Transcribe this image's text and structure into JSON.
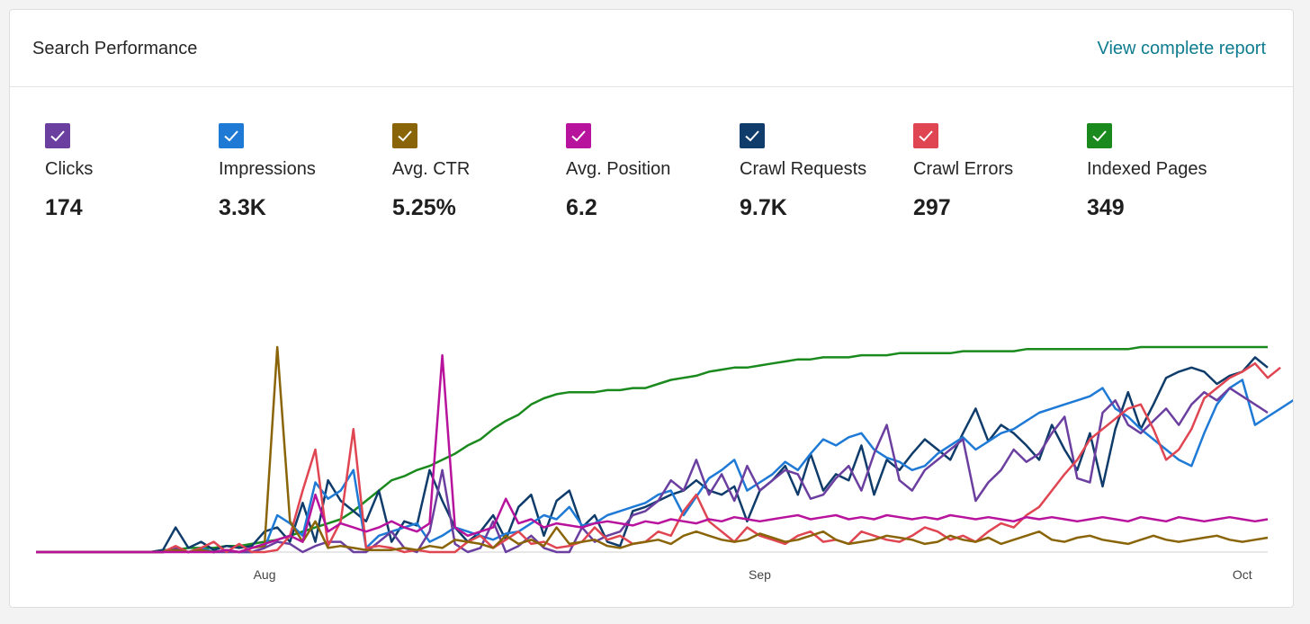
{
  "header": {
    "title": "Search Performance",
    "link_label": "View complete report"
  },
  "metrics": [
    {
      "label": "Clicks",
      "value": "174",
      "color": "#6b3fa0",
      "checked": true
    },
    {
      "label": "Impressions",
      "value": "3.3K",
      "color": "#1f7ad6",
      "checked": true
    },
    {
      "label": "Avg. CTR",
      "value": "5.25%",
      "color": "#8a6408",
      "checked": true
    },
    {
      "label": "Avg. Position",
      "value": "6.2",
      "color": "#b8139c",
      "checked": true
    },
    {
      "label": "Crawl Requests",
      "value": "9.7K",
      "color": "#0f3c6b",
      "checked": true
    },
    {
      "label": "Crawl Errors",
      "value": "297",
      "color": "#e04552",
      "checked": true
    },
    {
      "label": "Indexed Pages",
      "value": "349",
      "color": "#1b8a1e",
      "checked": true
    }
  ],
  "chart_data": {
    "type": "line",
    "x_tick_labels": [
      "Aug",
      "Sep",
      "Oct"
    ],
    "x_tick_index": [
      18,
      57,
      95
    ],
    "y_range": [
      0,
      100
    ],
    "grid": false,
    "legend": "top",
    "series": [
      {
        "name": "Indexed Pages",
        "color": "#1b8a1e",
        "values": [
          0,
          0,
          0,
          0,
          0,
          0,
          0,
          0,
          0,
          0,
          1,
          1,
          2,
          2,
          2,
          3,
          3,
          4,
          5,
          6,
          8,
          10,
          12,
          14,
          16,
          20,
          25,
          30,
          35,
          37,
          40,
          42,
          45,
          48,
          52,
          55,
          60,
          64,
          67,
          72,
          75,
          77,
          78,
          78,
          78,
          79,
          79,
          80,
          80,
          82,
          84,
          85,
          86,
          88,
          89,
          90,
          90,
          91,
          92,
          93,
          94,
          94,
          95,
          95,
          95,
          96,
          96,
          96,
          97,
          97,
          97,
          97,
          97,
          98,
          98,
          98,
          98,
          98,
          99,
          99,
          99,
          99,
          99,
          99,
          99,
          99,
          99,
          100,
          100,
          100,
          100,
          100,
          100,
          100,
          100,
          100,
          100,
          100
        ]
      },
      {
        "name": "Crawl Requests",
        "color": "#0f3c6b",
        "values": [
          0,
          0,
          0,
          0,
          0,
          0,
          0,
          0,
          0,
          0,
          1,
          12,
          2,
          5,
          1,
          3,
          2,
          3,
          10,
          12,
          5,
          24,
          5,
          35,
          25,
          20,
          15,
          30,
          5,
          15,
          13,
          40,
          25,
          12,
          5,
          10,
          18,
          6,
          22,
          28,
          8,
          25,
          30,
          12,
          18,
          5,
          3,
          20,
          22,
          25,
          28,
          30,
          35,
          30,
          28,
          32,
          15,
          30,
          35,
          42,
          28,
          48,
          30,
          38,
          35,
          52,
          28,
          45,
          40,
          48,
          55,
          50,
          45,
          58,
          70,
          54,
          62,
          58,
          52,
          45,
          62,
          50,
          40,
          58,
          32,
          60,
          78,
          60,
          72,
          85,
          88,
          90,
          88,
          82,
          86,
          88,
          95,
          90
        ]
      },
      {
        "name": "Impressions",
        "color": "#1f7ad6",
        "values": [
          0,
          0,
          0,
          0,
          0,
          0,
          0,
          0,
          0,
          0,
          0,
          1,
          0,
          2,
          0,
          1,
          0,
          0,
          2,
          18,
          14,
          8,
          34,
          26,
          30,
          40,
          2,
          8,
          10,
          12,
          14,
          5,
          8,
          12,
          10,
          8,
          6,
          9,
          10,
          14,
          18,
          16,
          22,
          13,
          14,
          18,
          20,
          22,
          24,
          28,
          30,
          18,
          27,
          36,
          40,
          45,
          30,
          34,
          38,
          44,
          40,
          48,
          55,
          52,
          56,
          58,
          50,
          46,
          44,
          40,
          42,
          48,
          52,
          56,
          50,
          54,
          58,
          60,
          64,
          68,
          70,
          72,
          74,
          76,
          80,
          70,
          66,
          60,
          55,
          50,
          45,
          42,
          58,
          72,
          80,
          84,
          62,
          66,
          70,
          74,
          66
        ]
      },
      {
        "name": "Clicks",
        "color": "#6b3fa0",
        "values": [
          0,
          0,
          0,
          0,
          0,
          0,
          0,
          0,
          0,
          0,
          0,
          2,
          0,
          1,
          0,
          0,
          0,
          0,
          2,
          5,
          4,
          0,
          3,
          5,
          5,
          0,
          0,
          5,
          10,
          2,
          0,
          10,
          40,
          4,
          0,
          2,
          15,
          0,
          3,
          8,
          2,
          0,
          0,
          12,
          5,
          8,
          10,
          18,
          20,
          25,
          35,
          30,
          45,
          28,
          38,
          25,
          42,
          30,
          35,
          40,
          38,
          26,
          28,
          36,
          42,
          30,
          48,
          62,
          35,
          30,
          40,
          45,
          50,
          55,
          25,
          34,
          40,
          50,
          44,
          48,
          58,
          66,
          36,
          34,
          68,
          74,
          62,
          58,
          64,
          70,
          62,
          72,
          78,
          74,
          80,
          76,
          72,
          68
        ]
      },
      {
        "name": "Crawl Errors",
        "color": "#e04552",
        "values": [
          0,
          0,
          0,
          0,
          0,
          0,
          0,
          0,
          0,
          0,
          0,
          3,
          0,
          2,
          5,
          0,
          4,
          0,
          0,
          1,
          8,
          30,
          50,
          3,
          15,
          60,
          2,
          3,
          2,
          0,
          1,
          0,
          0,
          0,
          5,
          8,
          2,
          6,
          10,
          4,
          5,
          2,
          3,
          5,
          12,
          6,
          8,
          4,
          5,
          10,
          8,
          20,
          28,
          15,
          10,
          5,
          12,
          8,
          6,
          4,
          8,
          10,
          5,
          6,
          4,
          10,
          8,
          6,
          5,
          8,
          12,
          10,
          6,
          8,
          5,
          10,
          14,
          12,
          18,
          22,
          30,
          38,
          45,
          55,
          60,
          65,
          70,
          72,
          60,
          45,
          50,
          60,
          75,
          80,
          85,
          88,
          92,
          85,
          90
        ]
      },
      {
        "name": "Avg. CTR",
        "color": "#8a6408",
        "values": [
          0,
          0,
          0,
          0,
          0,
          0,
          0,
          0,
          0,
          0,
          0,
          1,
          0,
          1,
          0,
          1,
          0,
          2,
          3,
          100,
          15,
          5,
          15,
          2,
          3,
          2,
          1,
          1,
          1,
          2,
          1,
          3,
          2,
          6,
          5,
          4,
          2,
          8,
          4,
          6,
          3,
          12,
          4,
          5,
          6,
          3,
          2,
          4,
          5,
          6,
          4,
          8,
          10,
          8,
          6,
          5,
          6,
          9,
          7,
          5,
          6,
          8,
          10,
          6,
          4,
          5,
          6,
          8,
          7,
          6,
          4,
          5,
          8,
          6,
          5,
          7,
          4,
          6,
          8,
          10,
          6,
          5,
          7,
          8,
          6,
          5,
          4,
          6,
          8,
          6,
          5,
          6,
          7,
          8,
          6,
          5,
          6,
          7
        ]
      },
      {
        "name": "Avg. Position",
        "color": "#b8139c",
        "values": [
          0,
          0,
          0,
          0,
          0,
          0,
          0,
          0,
          0,
          0,
          0,
          0,
          0,
          0,
          0,
          1,
          0,
          2,
          4,
          6,
          8,
          5,
          28,
          10,
          14,
          12,
          10,
          12,
          15,
          12,
          10,
          14,
          96,
          12,
          8,
          10,
          12,
          26,
          14,
          16,
          12,
          14,
          13,
          12,
          14,
          15,
          14,
          13,
          15,
          14,
          16,
          15,
          14,
          16,
          15,
          17,
          16,
          15,
          16,
          17,
          18,
          16,
          17,
          18,
          16,
          17,
          16,
          18,
          17,
          16,
          17,
          16,
          18,
          17,
          16,
          17,
          16,
          15,
          17,
          16,
          17,
          16,
          15,
          16,
          17,
          16,
          15,
          17,
          16,
          15,
          17,
          16,
          15,
          16,
          17,
          16,
          15,
          16
        ]
      }
    ]
  }
}
